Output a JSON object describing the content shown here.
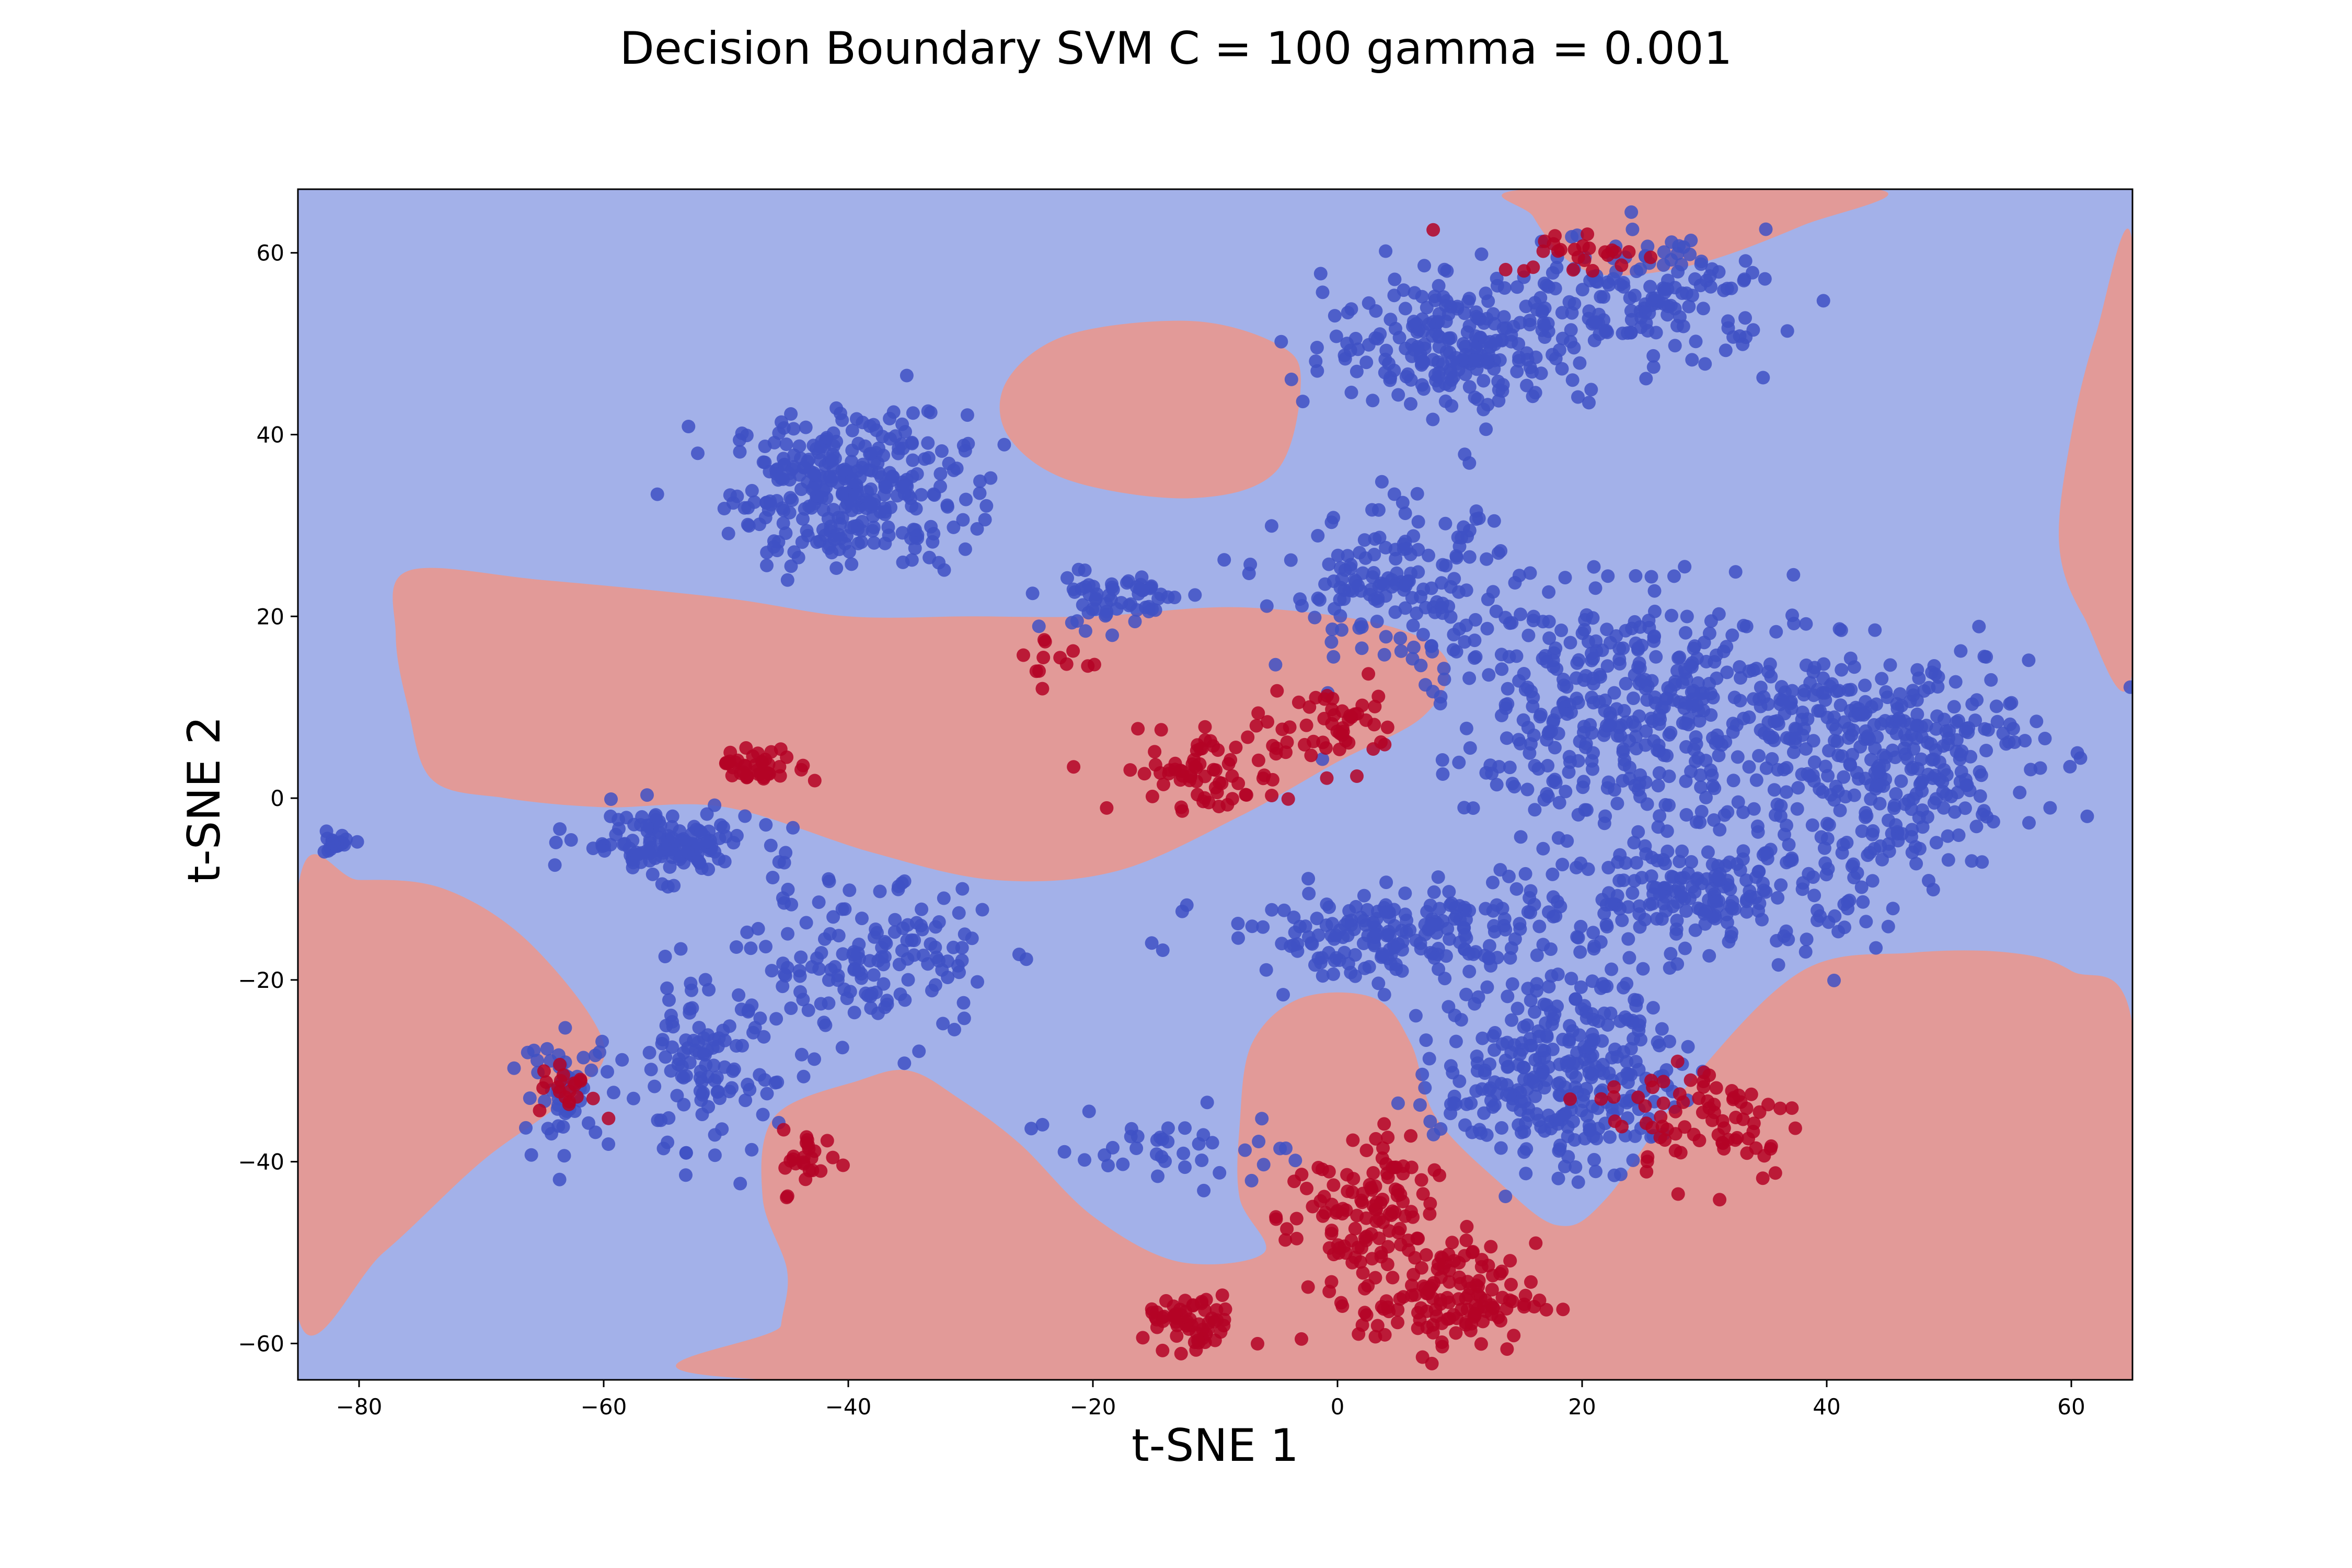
{
  "chart_data": {
    "type": "scatter",
    "title": "Decision Boundary SVM C = 100 gamma = 0.001",
    "xlabel": "t-SNE 1",
    "ylabel": "t-SNE 2",
    "xlim": [
      -85,
      65
    ],
    "ylim": [
      -64,
      67
    ],
    "xticks": [
      -80,
      -60,
      -40,
      -20,
      0,
      20,
      40,
      60
    ],
    "yticks": [
      -60,
      -40,
      -20,
      0,
      20,
      40,
      60
    ],
    "xtick_labels": [
      "−80",
      "−60",
      "−40",
      "−20",
      "0",
      "20",
      "40",
      "60"
    ],
    "ytick_labels": [
      "−60",
      "−40",
      "−20",
      "0",
      "20",
      "40",
      "60"
    ],
    "grid": false,
    "legend": "none",
    "colors": {
      "region_class_0": "#a3b1e9",
      "region_class_1": "#e29a98",
      "points_class_0": "#3f51c4",
      "points_class_1": "#b40426"
    },
    "decision_regions": [
      {
        "class": 1,
        "polygon": [
          [
            -3,
            46
          ],
          [
            -5,
            50
          ],
          [
            -12,
            52.5
          ],
          [
            -22,
            51
          ],
          [
            -27,
            46
          ],
          [
            -27,
            40
          ],
          [
            -22,
            35
          ],
          [
            -12,
            33
          ],
          [
            -5,
            36
          ]
        ]
      },
      {
        "class": 1,
        "polygon": [
          [
            -76,
            25
          ],
          [
            -65,
            24
          ],
          [
            -50,
            22
          ],
          [
            -40,
            20
          ],
          [
            -30,
            20
          ],
          [
            -20,
            20
          ],
          [
            -8,
            21
          ],
          [
            4,
            19
          ],
          [
            9,
            15
          ],
          [
            7,
            9
          ],
          [
            0,
            4
          ],
          [
            -8,
            -2
          ],
          [
            -18,
            -8
          ],
          [
            -28,
            -9
          ],
          [
            -38,
            -6
          ],
          [
            -50,
            -1
          ],
          [
            -60,
            -1
          ],
          [
            -68,
            0
          ],
          [
            -74,
            2
          ],
          [
            -76,
            10
          ],
          [
            -77,
            18
          ]
        ]
      },
      {
        "class": 1,
        "polygon": [
          [
            -85,
            -10
          ],
          [
            -80,
            -9
          ],
          [
            -73,
            -10
          ],
          [
            -66,
            -16
          ],
          [
            -60,
            -27
          ],
          [
            -63,
            -33
          ],
          [
            -70,
            -40
          ],
          [
            -78,
            -50
          ],
          [
            -85,
            -57
          ]
        ]
      },
      {
        "class": 1,
        "polygon": [
          [
            -46,
            -64
          ],
          [
            -45.5,
            -58
          ],
          [
            -45,
            -52
          ],
          [
            -47,
            -44
          ],
          [
            -46,
            -35
          ],
          [
            -39,
            -31
          ],
          [
            -35,
            -30
          ],
          [
            -31,
            -33
          ],
          [
            -26,
            -38
          ],
          [
            -20,
            -46
          ],
          [
            -13,
            -51
          ],
          [
            -6,
            -50
          ],
          [
            -8,
            -44
          ],
          [
            -8,
            -36
          ],
          [
            -7,
            -27
          ],
          [
            -3,
            -22
          ],
          [
            3,
            -22
          ],
          [
            6,
            -27
          ],
          [
            8,
            -35
          ],
          [
            13,
            -42
          ],
          [
            18,
            -47
          ],
          [
            22,
            -44
          ],
          [
            29,
            -31
          ],
          [
            38,
            -19
          ],
          [
            47,
            -17
          ],
          [
            55,
            -17
          ],
          [
            60,
            -19
          ],
          [
            65,
            -25
          ],
          [
            65,
            -64
          ]
        ]
      },
      {
        "class": 1,
        "polygon": [
          [
            15.5,
            67
          ],
          [
            16,
            64
          ],
          [
            19,
            59
          ],
          [
            23,
            57.5
          ],
          [
            30,
            59
          ],
          [
            38,
            63
          ],
          [
            44,
            67
          ]
        ]
      },
      {
        "class": 1,
        "polygon": [
          [
            65,
            61
          ],
          [
            62,
            51
          ],
          [
            60,
            40
          ],
          [
            59,
            28
          ],
          [
            61,
            20
          ],
          [
            65,
            14
          ]
        ]
      }
    ],
    "series": [
      {
        "class": 0,
        "color": "#3f51c4",
        "clusters": [
          {
            "center": [
              -40,
              34
            ],
            "spread": [
              8,
              7
            ],
            "n": 320
          },
          {
            "center": [
              -55,
              -5
            ],
            "spread": [
              6,
              3
            ],
            "n": 130
          },
          {
            "center": [
              -82,
              -5
            ],
            "spread": [
              1.2,
              1
            ],
            "n": 25
          },
          {
            "center": [
              -38,
              -18
            ],
            "spread": [
              8,
              7
            ],
            "n": 150
          },
          {
            "center": [
              -52,
              -30
            ],
            "spread": [
              5,
              8
            ],
            "n": 110
          },
          {
            "center": [
              -63,
              -32
            ],
            "spread": [
              3,
              5
            ],
            "n": 50
          },
          {
            "center": [
              10,
              50
            ],
            "spread": [
              9,
              6
            ],
            "n": 230
          },
          {
            "center": [
              25,
              55
            ],
            "spread": [
              9,
              6
            ],
            "n": 160
          },
          {
            "center": [
              5,
              23
            ],
            "spread": [
              8,
              7
            ],
            "n": 160
          },
          {
            "center": [
              -18,
              22
            ],
            "spread": [
              5,
              3
            ],
            "n": 60
          },
          {
            "center": [
              25,
              10
            ],
            "spread": [
              14,
              10
            ],
            "n": 420
          },
          {
            "center": [
              45,
              5
            ],
            "spread": [
              10,
              10
            ],
            "n": 320
          },
          {
            "center": [
              30,
              -10
            ],
            "spread": [
              12,
              6
            ],
            "n": 240
          },
          {
            "center": [
              5,
              -15
            ],
            "spread": [
              12,
              4
            ],
            "n": 200
          },
          {
            "center": [
              18,
              -30
            ],
            "spread": [
              8,
              9
            ],
            "n": 320
          },
          {
            "center": [
              -13,
              -38
            ],
            "spread": [
              8,
              4
            ],
            "n": 40
          }
        ]
      },
      {
        "class": 1,
        "color": "#b40426",
        "clusters": [
          {
            "center": [
              -47,
              3.5
            ],
            "spread": [
              3,
              1.5
            ],
            "n": 40
          },
          {
            "center": [
              -11,
              3
            ],
            "spread": [
              6,
              4
            ],
            "n": 70
          },
          {
            "center": [
              0,
              8
            ],
            "spread": [
              5,
              4
            ],
            "n": 50
          },
          {
            "center": [
              -12,
              -58
            ],
            "spread": [
              3,
              2.5
            ],
            "n": 60
          },
          {
            "center": [
              2,
              -46
            ],
            "spread": [
              5,
              7
            ],
            "n": 120
          },
          {
            "center": [
              9,
              -55
            ],
            "spread": [
              6,
              5
            ],
            "n": 140
          },
          {
            "center": [
              30,
              -35
            ],
            "spread": [
              7,
              6
            ],
            "n": 80
          },
          {
            "center": [
              -43,
              -40
            ],
            "spread": [
              2,
              3
            ],
            "n": 25
          },
          {
            "center": [
              -63,
              -32
            ],
            "spread": [
              2,
              2.5
            ],
            "n": 20
          },
          {
            "center": [
              20,
              60
            ],
            "spread": [
              6,
              2
            ],
            "n": 25
          },
          {
            "center": [
              -23,
              15
            ],
            "spread": [
              3,
              3
            ],
            "n": 12
          }
        ]
      }
    ]
  }
}
